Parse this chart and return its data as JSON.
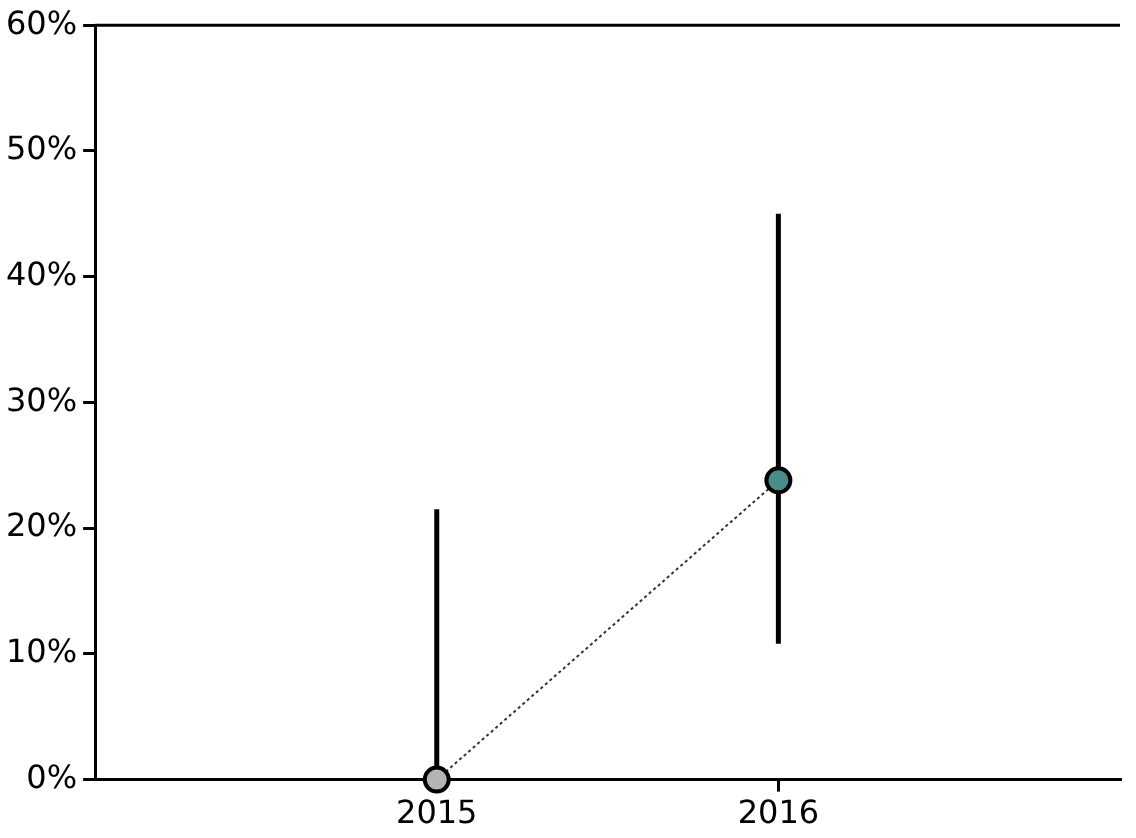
{
  "chart_data": {
    "type": "line",
    "x": [
      2015,
      2016
    ],
    "xlim": [
      2014,
      2017
    ],
    "xticks": [
      2015,
      2016
    ],
    "ylim": [
      0,
      60
    ],
    "yticks": [
      {
        "value": 0,
        "label": "0%"
      },
      {
        "value": 10,
        "label": "10%"
      },
      {
        "value": 20,
        "label": "20%"
      },
      {
        "value": 30,
        "label": "30%"
      },
      {
        "value": 40,
        "label": "40%"
      },
      {
        "value": 50,
        "label": "50%"
      },
      {
        "value": 60,
        "label": "60%"
      }
    ],
    "series": [
      {
        "color": "#333333",
        "colors": [
          "#b4b4b4",
          "#4a8c8a"
        ],
        "values": [
          0,
          23.8
        ],
        "errors": [
          [
            0,
            21.5
          ],
          [
            10.8,
            45
          ]
        ]
      }
    ],
    "line_style": "dotted",
    "marker": "circle",
    "grid": false,
    "legend": false
  }
}
